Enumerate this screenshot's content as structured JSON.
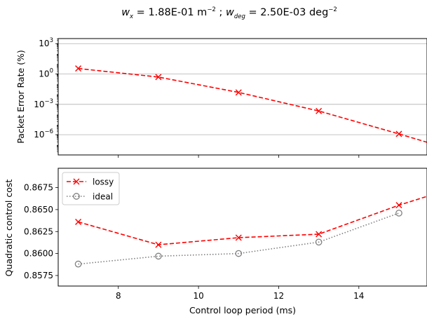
{
  "chart_data": [
    {
      "type": "line",
      "title": "",
      "xlabel": "",
      "ylabel": "Packet Error Rate (%)",
      "yscale": "log",
      "xlim": [
        6.5,
        15.7
      ],
      "ylim_log10": [
        -8,
        3.5
      ],
      "yticks": [
        {
          "exp": 3,
          "label_base": "10",
          "label_exp": "3"
        },
        {
          "exp": 0,
          "label_base": "10",
          "label_exp": "0"
        },
        {
          "exp": -3,
          "label_base": "10",
          "label_exp": "−3"
        },
        {
          "exp": -6,
          "label_base": "10",
          "label_exp": "−6"
        }
      ],
      "grid": "horizontal",
      "series": [
        {
          "name": "lossy",
          "color": "#ff0000",
          "marker": "x",
          "linestyle": "dashed",
          "x": [
            7,
            9,
            11,
            13,
            15,
            15.7
          ],
          "y": [
            3.5,
            0.5,
            0.015,
            0.00022,
            1.2e-06,
            1.8e-07
          ],
          "marker_count": 5
        }
      ]
    },
    {
      "type": "line",
      "title": "",
      "xlabel": "Control loop period (ms)",
      "ylabel": "Quadratic control cost",
      "xlim": [
        6.5,
        15.7
      ],
      "ylim": [
        0.8563,
        0.8697
      ],
      "xticks": [
        "8",
        "10",
        "12",
        "14"
      ],
      "yticks": [
        "0.8575",
        "0.8600",
        "0.8625",
        "0.8650",
        "0.8675"
      ],
      "legend_position": "upper-left",
      "series": [
        {
          "name": "lossy",
          "color": "#ff0000",
          "marker": "x",
          "linestyle": "dashed",
          "x": [
            7,
            9,
            11,
            13,
            15,
            15.7
          ],
          "y": [
            0.8636,
            0.861,
            0.8618,
            0.8622,
            0.8655,
            0.8665
          ],
          "marker_count": 5
        },
        {
          "name": "ideal",
          "color": "#808080",
          "marker": "o",
          "linestyle": "dotted",
          "x": [
            7,
            9,
            11,
            13,
            15
          ],
          "y": [
            0.8588,
            0.8597,
            0.86,
            0.8613,
            0.8646
          ],
          "marker_count": 5
        }
      ]
    }
  ],
  "title": {
    "w_x_symbol": "w",
    "w_x_sub": "x",
    "w_x_value": " = 1.88E-01  m",
    "w_x_exp": "−2",
    "separator": " ; ",
    "w_deg_symbol": "w",
    "w_deg_sub": "deg",
    "w_deg_value": " = 2.50E-03 deg",
    "w_deg_exp": "−2"
  }
}
